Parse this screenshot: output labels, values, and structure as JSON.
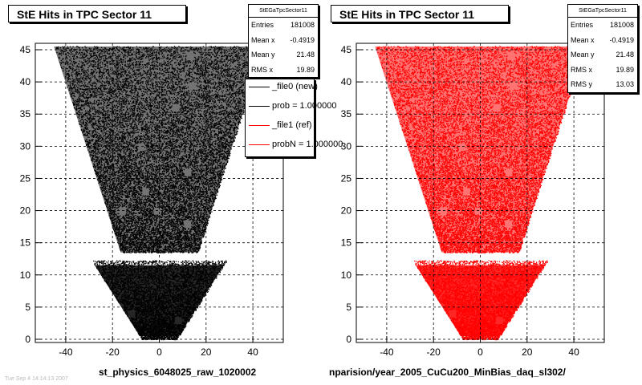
{
  "chart_data": [
    {
      "type": "scatter",
      "title": "StE Hits in TPC Sector 11",
      "xlabel": "st_physics_6048025_raw_1020002",
      "ylabel": "",
      "xlim": [
        -53,
        53
      ],
      "ylim": [
        -0.5,
        46
      ],
      "xticks": [
        "-40",
        "-20",
        "0",
        "20",
        "40"
      ],
      "yticks": [
        "0",
        "5",
        "10",
        "15",
        "20",
        "25",
        "30",
        "35",
        "40",
        "45"
      ],
      "grid": true,
      "marker_color": "#000000",
      "stats": {
        "name": "StEGaTpcSector11",
        "rows": [
          {
            "key": "Entries",
            "value": "181008"
          },
          {
            "key": "Mean x",
            "value": "-0.4919"
          },
          {
            "key": "Mean y",
            "value": "21.48"
          },
          {
            "key": "RMS x",
            "value": "19.89"
          }
        ]
      },
      "legend": {
        "placement": "right",
        "entries": [
          {
            "label": "_file0 (new)",
            "color": "#000000"
          },
          {
            "label": "prob = 1.000000",
            "color": "#000000"
          },
          {
            "label": "_file1 (ref)",
            "color": "#ff0000"
          },
          {
            "label": "probN = 1.000000",
            "color": "#ff0000"
          }
        ]
      },
      "footer": "Tue Sep 4 14:14:13 2007"
    },
    {
      "type": "scatter",
      "title": "StE Hits in TPC Sector 11",
      "xlabel": "nparision/year_2005_CuCu200_MinBias_daq_sl302/",
      "ylabel": "",
      "xlim": [
        -53,
        53
      ],
      "ylim": [
        -0.5,
        46
      ],
      "xticks": [
        "-40",
        "-20",
        "0",
        "20",
        "40"
      ],
      "yticks": [
        "0",
        "5",
        "10",
        "15",
        "20",
        "25",
        "30",
        "35",
        "40",
        "45"
      ],
      "grid": true,
      "marker_color": "#ff0000",
      "stats": {
        "name": "StEGaTpcSector11",
        "rows": [
          {
            "key": "Entries",
            "value": "181008"
          },
          {
            "key": "Mean x",
            "value": "-0.4919"
          },
          {
            "key": "Mean y",
            "value": "21.48"
          },
          {
            "key": "RMS x",
            "value": "19.89"
          },
          {
            "key": "RMS y",
            "value": "13.03"
          }
        ]
      }
    }
  ]
}
